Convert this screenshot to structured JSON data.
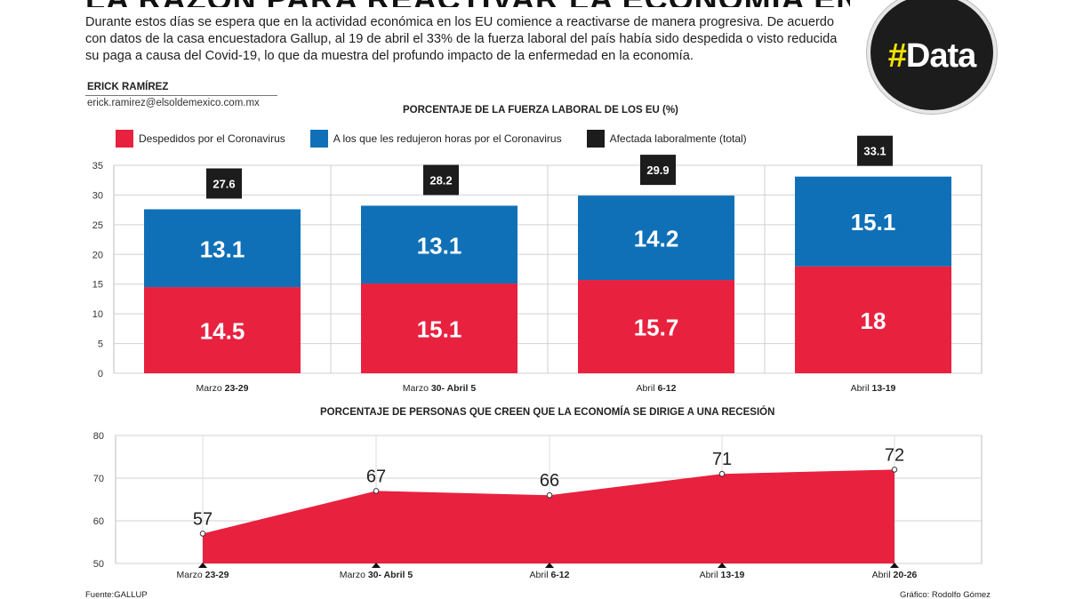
{
  "article": {
    "headline": "LA RAZÓN PARA REACTIVAR LA ECONOMÍA EN EU",
    "intro": "Durante estos días se espera que en la actividad económica en los EU comience a reactivarse de manera progresiva. De acuerdo con datos de la casa encuestadora Gallup, al 19 de abril el 33% de la fuerza laboral del país había sido despedida o visto reducida su paga a causa del Covid-19, lo que da muestra del profundo impacto de la enfermedad en la economía.",
    "author": "ERICK RAMÍREZ",
    "email": "erick.ramirez@elsoldemexico.com.mx",
    "badge_hash": "#",
    "badge_word": "Data"
  },
  "colors": {
    "red": "#e8213f",
    "blue": "#0f70b7",
    "black": "#1c1c1c"
  },
  "chart_data": [
    {
      "type": "bar",
      "stacked": true,
      "title": "PORCENTAJE DE LA FUERZA LABORAL DE LOS EU (%)",
      "categories": [
        {
          "prefix": "Marzo",
          "range": "23-29"
        },
        {
          "prefix": "Marzo",
          "range": "30- Abril 5"
        },
        {
          "prefix": "Abril",
          "range": "6-12"
        },
        {
          "prefix": "Abril",
          "range": "13-19"
        }
      ],
      "series": [
        {
          "name": "Despedidos por el Coronavirus",
          "color": "#e8213f",
          "values": [
            14.5,
            15.1,
            15.7,
            18
          ]
        },
        {
          "name": "A los que les redujeron horas por el Coronavirus",
          "color": "#0f70b7",
          "values": [
            13.1,
            13.1,
            14.2,
            15.1
          ]
        }
      ],
      "totals": {
        "name": "Afectada laboralmente (total)",
        "color": "#1c1c1c",
        "values": [
          27.6,
          28.2,
          29.9,
          33.1
        ]
      },
      "ylim": [
        0,
        35
      ],
      "yticks": [
        0,
        5,
        10,
        15,
        20,
        25,
        30,
        35
      ],
      "grid": true,
      "legend": "top-left"
    },
    {
      "type": "area",
      "title": "PORCENTAJE DE PERSONAS QUE CREEN QUE LA ECONOMÍA SE DIRIGE A UNA RECESIÓN",
      "categories": [
        {
          "prefix": "Marzo",
          "range": "23-29"
        },
        {
          "prefix": "Marzo",
          "range": "30- Abril 5"
        },
        {
          "prefix": "Abril",
          "range": "6-12"
        },
        {
          "prefix": "Abril",
          "range": "13-19"
        },
        {
          "prefix": "Abril",
          "range": "20-26"
        }
      ],
      "values": [
        57,
        67,
        66,
        71,
        72
      ],
      "color": "#e8213f",
      "ylim": [
        50,
        80
      ],
      "yticks": [
        50,
        60,
        70,
        80
      ],
      "grid": true
    }
  ],
  "footer": {
    "source": "Fuente:GALLUP",
    "credit": "Gráfico: Rodolfo Gómez"
  }
}
